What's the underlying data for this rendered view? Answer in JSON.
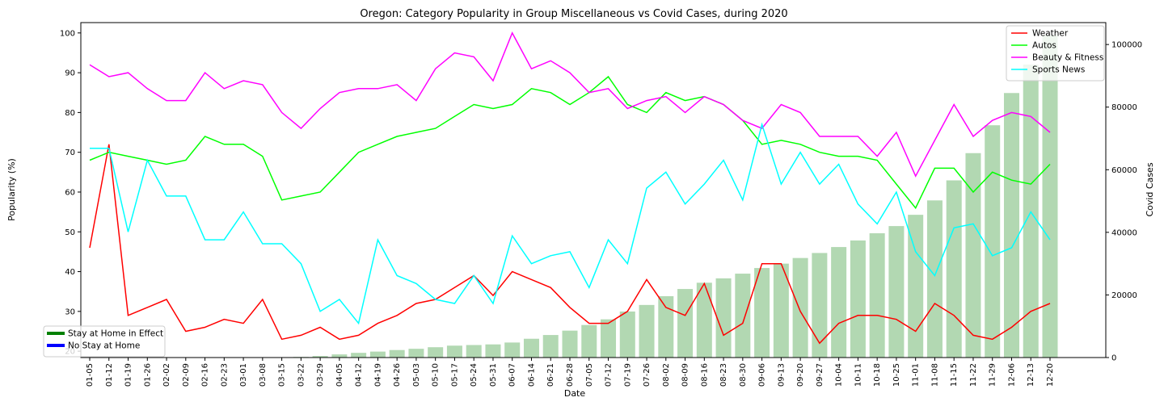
{
  "chart_data": {
    "type": "bar+line",
    "title": "Oregon: Category Popularity in Group Miscellaneous vs Covid Cases, during 2020",
    "xlabel": "Date",
    "ylabel": "Popularity (%)",
    "y2label": "Covid Cases",
    "ylim": [
      18.4,
      102.6
    ],
    "y2lim": [
      0,
      107000
    ],
    "yticks": [
      20,
      30,
      40,
      50,
      60,
      70,
      80,
      90,
      100
    ],
    "y2ticks": [
      0,
      20000,
      40000,
      60000,
      80000,
      100000
    ],
    "categories": [
      "01-05",
      "01-12",
      "01-19",
      "01-26",
      "02-02",
      "02-09",
      "02-16",
      "02-23",
      "03-01",
      "03-08",
      "03-15",
      "03-22",
      "03-29",
      "04-05",
      "04-12",
      "04-19",
      "04-26",
      "05-03",
      "05-10",
      "05-17",
      "05-24",
      "05-31",
      "06-07",
      "06-14",
      "06-21",
      "06-28",
      "07-05",
      "07-12",
      "07-19",
      "07-26",
      "08-02",
      "08-09",
      "08-16",
      "08-23",
      "08-30",
      "09-06",
      "09-13",
      "09-20",
      "09-27",
      "10-04",
      "10-11",
      "10-18",
      "10-25",
      "11-01",
      "11-08",
      "11-15",
      "11-22",
      "11-29",
      "12-06",
      "12-13",
      "12-20"
    ],
    "bars": {
      "name": "Covid Cases",
      "color": "#b2d8b2",
      "values": [
        0,
        0,
        0,
        0,
        0,
        0,
        0,
        0,
        0,
        0,
        0,
        200,
        500,
        1000,
        1500,
        1900,
        2400,
        2800,
        3300,
        3800,
        4000,
        4200,
        4800,
        6000,
        7200,
        8600,
        10400,
        12200,
        14700,
        16800,
        19600,
        21900,
        23900,
        25300,
        26800,
        28600,
        30000,
        31800,
        33400,
        35300,
        37400,
        39700,
        42000,
        45600,
        50200,
        56600,
        65300,
        74200,
        84500,
        93600,
        103000
      ]
    },
    "series": [
      {
        "name": "Weather",
        "color": "#ff0000",
        "values": [
          46,
          72,
          29,
          31,
          33,
          25,
          26,
          28,
          27,
          33,
          23,
          24,
          26,
          23,
          24,
          27,
          29,
          32,
          33,
          36,
          39,
          34,
          40,
          38,
          36,
          31,
          27,
          27,
          30,
          38,
          31,
          29,
          37,
          24,
          27,
          42,
          42,
          30,
          22,
          27,
          29,
          29,
          28,
          25,
          32,
          29,
          24,
          23,
          26,
          30,
          32
        ]
      },
      {
        "name": "Autos",
        "color": "#00ff00",
        "values": [
          68,
          70,
          69,
          68,
          67,
          68,
          74,
          72,
          72,
          69,
          58,
          59,
          60,
          65,
          70,
          72,
          74,
          75,
          76,
          79,
          82,
          81,
          82,
          86,
          85,
          82,
          85,
          89,
          82,
          80,
          85,
          83,
          84,
          82,
          78,
          72,
          73,
          72,
          70,
          69,
          69,
          68,
          62,
          56,
          66,
          66,
          60,
          65,
          63,
          62,
          67
        ]
      },
      {
        "name": "Beauty & Fitness",
        "color": "#ff00ff",
        "values": [
          92,
          89,
          90,
          86,
          83,
          83,
          90,
          86,
          88,
          87,
          80,
          76,
          81,
          85,
          86,
          86,
          87,
          83,
          91,
          95,
          94,
          88,
          100,
          91,
          93,
          90,
          85,
          86,
          81,
          83,
          84,
          80,
          84,
          82,
          78,
          76,
          82,
          80,
          74,
          74,
          74,
          69,
          75,
          64,
          73,
          82,
          74,
          78,
          80,
          79,
          75
        ]
      },
      {
        "name": "Sports News",
        "color": "#00ffff",
        "values": [
          71,
          71,
          50,
          68,
          59,
          59,
          48,
          48,
          55,
          47,
          47,
          42,
          30,
          33,
          27,
          48,
          39,
          37,
          33,
          32,
          39,
          32,
          49,
          42,
          44,
          45,
          36,
          48,
          42,
          61,
          65,
          57,
          62,
          68,
          58,
          77,
          62,
          70,
          62,
          67,
          57,
          52,
          60,
          45,
          39,
          51,
          52,
          44,
          46,
          55,
          48
        ]
      }
    ],
    "legend_upper": {
      "position": "top-right",
      "items": [
        "Weather",
        "Autos",
        "Beauty & Fitness",
        "Sports News"
      ]
    },
    "legend_lower": {
      "position": "bottom-left",
      "items": [
        {
          "label": "Stay at Home in Effect",
          "color": "#008000"
        },
        {
          "label": "No Stay at Home",
          "color": "#0000ff"
        }
      ]
    },
    "grid": false
  }
}
